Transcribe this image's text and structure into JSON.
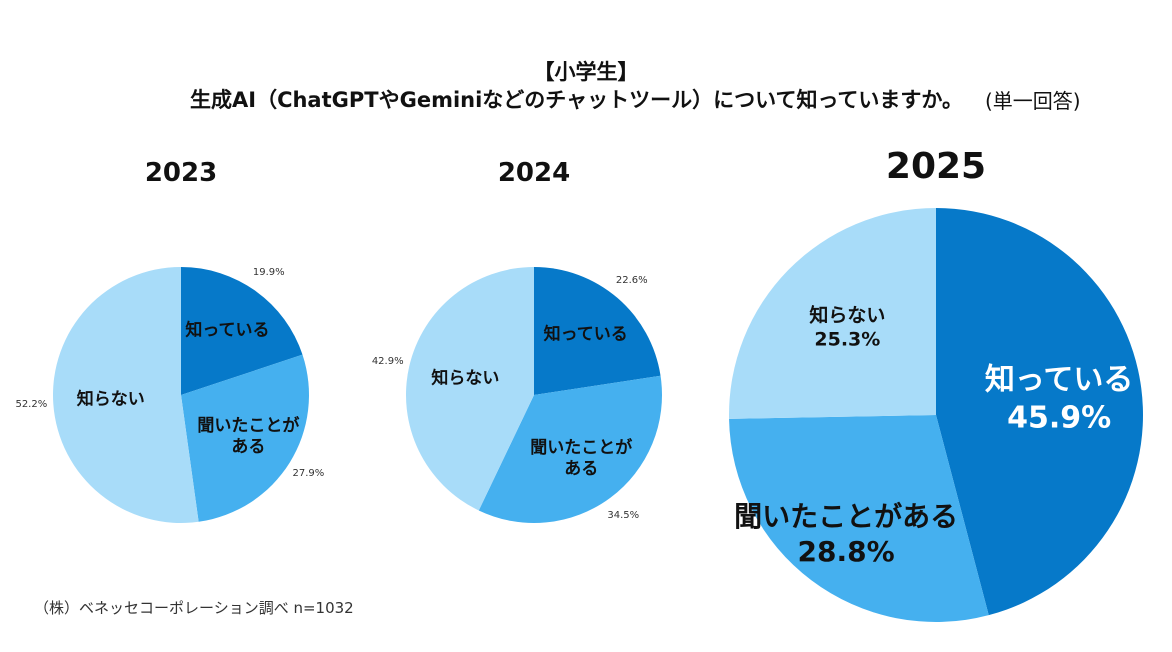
{
  "header": {
    "group": "【小学生】",
    "title": "生成AI（ChatGPTやGeminiなどのチャットツール）について知っていますか。",
    "note": "(単一回答)"
  },
  "source": "（株）ベネッセコーポレーション調べ n=1032",
  "chart_data": [
    {
      "type": "pie",
      "title": "2023",
      "categories": [
        "知っている",
        "聞いたことがある",
        "知らない"
      ],
      "values": [
        19.9,
        27.9,
        52.2
      ],
      "value_labels": [
        "19.9%",
        "27.9%",
        "52.2%"
      ],
      "colors": [
        "#0679c9",
        "#45b0ef",
        "#a8dcf9"
      ]
    },
    {
      "type": "pie",
      "title": "2024",
      "categories": [
        "知っている",
        "聞いたことがある",
        "知らない"
      ],
      "values": [
        22.6,
        34.5,
        42.9
      ],
      "value_labels": [
        "22.6%",
        "34.5%",
        "42.9%"
      ],
      "colors": [
        "#0679c9",
        "#45b0ef",
        "#a8dcf9"
      ]
    },
    {
      "type": "pie",
      "title": "2025",
      "categories": [
        "知っている",
        "聞いたことがある",
        "知らない"
      ],
      "values": [
        45.9,
        28.8,
        25.3
      ],
      "value_labels": [
        "45.9%",
        "28.8%",
        "25.3%"
      ],
      "colors": [
        "#0679c9",
        "#45b0ef",
        "#a8dcf9"
      ]
    }
  ]
}
